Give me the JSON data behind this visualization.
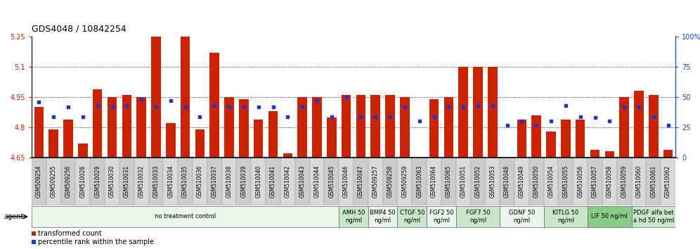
{
  "title": "GDS4048 / 10842254",
  "samples": [
    "GSM509254",
    "GSM509255",
    "GSM509256",
    "GSM510028",
    "GSM510029",
    "GSM510030",
    "GSM510031",
    "GSM510032",
    "GSM510033",
    "GSM510034",
    "GSM510035",
    "GSM510036",
    "GSM510037",
    "GSM510038",
    "GSM510039",
    "GSM510040",
    "GSM510041",
    "GSM510042",
    "GSM510043",
    "GSM510044",
    "GSM510045",
    "GSM510046",
    "GSM510047",
    "GSM509257",
    "GSM509258",
    "GSM509259",
    "GSM510063",
    "GSM510064",
    "GSM510065",
    "GSM510051",
    "GSM510052",
    "GSM510053",
    "GSM510048",
    "GSM510049",
    "GSM510050",
    "GSM510054",
    "GSM510055",
    "GSM510056",
    "GSM510057",
    "GSM510058",
    "GSM510059",
    "GSM510060",
    "GSM510061",
    "GSM510062"
  ],
  "bar_values": [
    4.9,
    4.79,
    4.84,
    4.72,
    4.99,
    4.95,
    4.96,
    4.95,
    5.25,
    4.82,
    5.25,
    4.79,
    5.17,
    4.95,
    4.94,
    4.84,
    4.88,
    4.67,
    4.95,
    4.95,
    4.85,
    4.96,
    4.96,
    4.96,
    4.96,
    4.95,
    4.64,
    4.94,
    4.95,
    5.1,
    5.1,
    5.1,
    4.65,
    4.84,
    4.86,
    4.78,
    4.84,
    4.84,
    4.69,
    4.68,
    4.95,
    4.98,
    4.96,
    4.69
  ],
  "percentile_values": [
    46,
    34,
    42,
    34,
    43,
    42,
    43,
    48,
    42,
    47,
    42,
    34,
    43,
    42,
    42,
    42,
    42,
    34,
    42,
    47,
    34,
    50,
    34,
    34,
    34,
    42,
    30,
    34,
    42,
    42,
    43,
    43,
    27,
    30,
    27,
    30,
    43,
    34,
    33,
    30,
    42,
    42,
    34,
    27
  ],
  "ylim_left": [
    4.65,
    5.25
  ],
  "ylim_right": [
    0,
    100
  ],
  "yticks_left": [
    4.65,
    4.8,
    4.95,
    5.1,
    5.25
  ],
  "ytick_labels_left": [
    "4.65",
    "4.8",
    "4.95",
    "5.1",
    "5.25"
  ],
  "yticks_right": [
    0,
    25,
    50,
    75,
    100
  ],
  "grid_values": [
    4.8,
    4.95,
    5.1
  ],
  "agent_groups": [
    {
      "label": "no treatment control",
      "start": 0,
      "end": 21,
      "color": "#eaf5ea"
    },
    {
      "label": "AMH 50\nng/ml",
      "start": 21,
      "end": 23,
      "color": "#c8e6c9"
    },
    {
      "label": "BMP4 50\nng/ml",
      "start": 23,
      "end": 25,
      "color": "#eaf5ea"
    },
    {
      "label": "CTGF 50\nng/ml",
      "start": 25,
      "end": 27,
      "color": "#c8e6c9"
    },
    {
      "label": "FGF2 50\nng/ml",
      "start": 27,
      "end": 29,
      "color": "#eaf5ea"
    },
    {
      "label": "FGF7 50\nng/ml",
      "start": 29,
      "end": 32,
      "color": "#c8e6c9"
    },
    {
      "label": "GDNF 50\nng/ml",
      "start": 32,
      "end": 35,
      "color": "#eaf5ea"
    },
    {
      "label": "KITLG 50\nng/ml",
      "start": 35,
      "end": 38,
      "color": "#c8e6c9"
    },
    {
      "label": "LIF 50 ng/ml",
      "start": 38,
      "end": 41,
      "color": "#88cc88"
    },
    {
      "label": "PDGF alfa bet\na hd 50 ng/ml",
      "start": 41,
      "end": 44,
      "color": "#c8e6c9"
    }
  ],
  "bar_color": "#cc2200",
  "dot_color": "#2233cc",
  "left_axis_color": "#cc2200",
  "right_axis_color": "#1144cc",
  "fig_width": 9.96,
  "fig_height": 3.54,
  "dpi": 100
}
